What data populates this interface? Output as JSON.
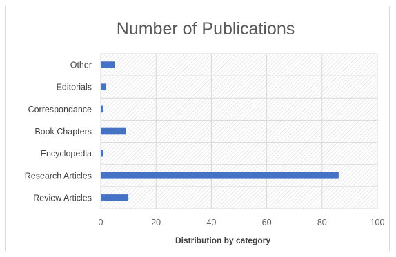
{
  "chart_data": {
    "type": "bar",
    "orientation": "horizontal",
    "title": "Number of Publications",
    "xlabel": "Distribution by category",
    "ylabel": "",
    "categories": [
      "Other",
      "Editorials",
      "Correspondance",
      "Book Chapters",
      "Encyclopedia",
      "Research Articles",
      "Review Articles"
    ],
    "values": [
      5,
      2,
      1,
      9,
      1,
      86,
      10
    ],
    "xlim": [
      0,
      100
    ],
    "xticks": [
      0,
      20,
      40,
      60,
      80,
      100
    ],
    "grid": true,
    "legend": "none",
    "colors": {
      "bar": "#4472c4",
      "grid": "#d9d9d9",
      "hatch": "#d4d4d4",
      "text": "#404040",
      "title": "#595959"
    }
  }
}
